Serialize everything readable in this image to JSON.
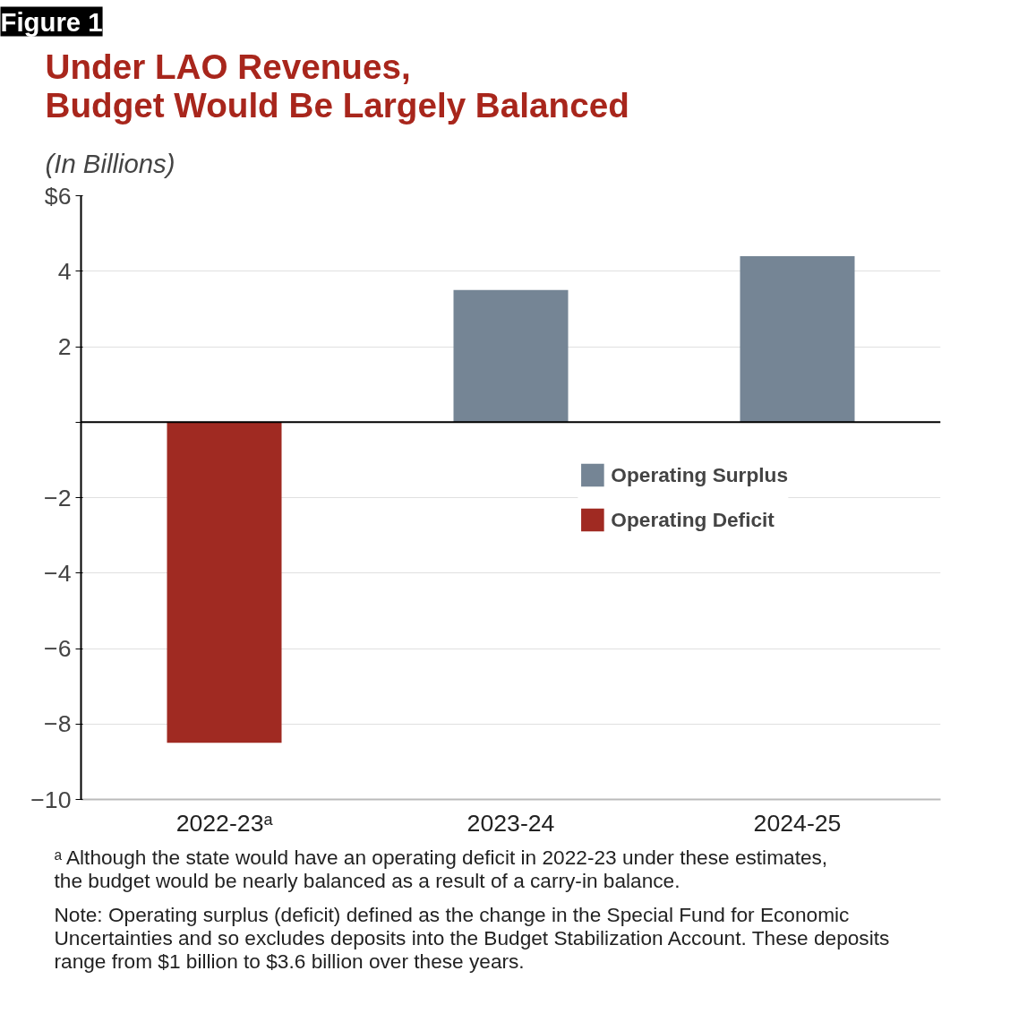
{
  "chart_data": {
    "type": "bar",
    "title": "Under LAO Revenues,\nBudget Would Be Largely Balanced",
    "subtitle": "(In Billions)",
    "categories": [
      "2022-23ᵃ",
      "2023-24",
      "2024-25"
    ],
    "series": [
      {
        "name": "Operating Surplus",
        "color": "#758595",
        "values": [
          null,
          3.5,
          4.4
        ]
      },
      {
        "name": "Operating Deficit",
        "color": "#a02a22",
        "values": [
          -8.5,
          null,
          null
        ]
      }
    ],
    "ylim": [
      -10,
      6
    ],
    "yticks": [
      -10,
      -8,
      -6,
      -4,
      -2,
      {
        "value": 0,
        "label": null
      },
      2,
      4,
      {
        "value": 6,
        "label": "$6"
      }
    ],
    "grid": "y",
    "legend": "right",
    "annotations": [
      "Figure 1",
      "ᵃ Although the state would have an operating deficit in 2022-23 under these estimates,\n  the budget would be nearly balanced as a result of a carry-in balance.",
      "Note: Operating surplus (deficit) defined as the change in the Special Fund for Economic\nUncertainties and so excludes deposits into the Budget Stabilization Account. These deposits\nrange from $1 billion to $3.6 billion over these years."
    ]
  }
}
